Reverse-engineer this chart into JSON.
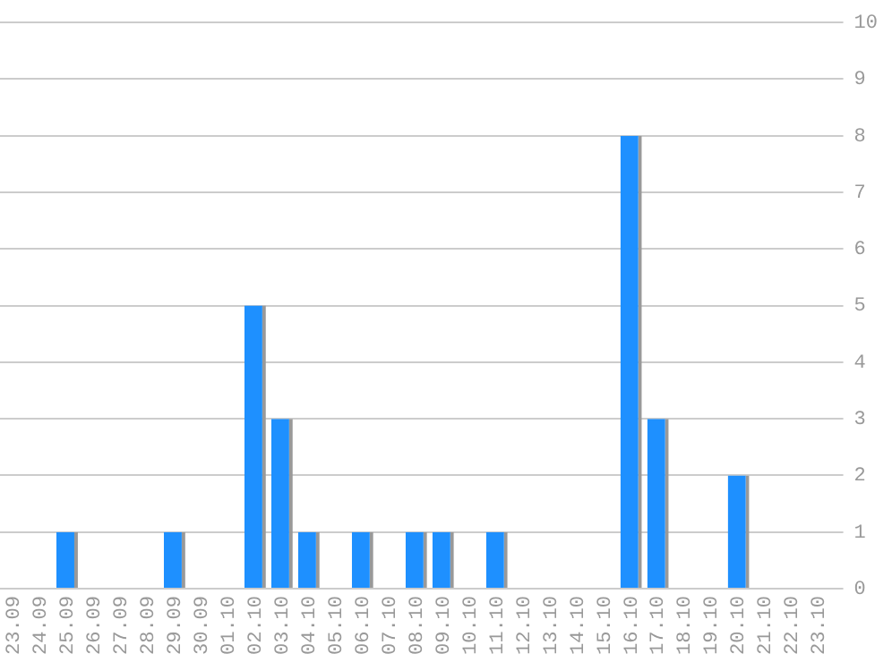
{
  "chart_data": {
    "type": "bar",
    "categories": [
      "23.09",
      "24.09",
      "25.09",
      "26.09",
      "27.09",
      "28.09",
      "29.09",
      "30.09",
      "01.10",
      "02.10",
      "03.10",
      "04.10",
      "05.10",
      "06.10",
      "07.10",
      "08.10",
      "09.10",
      "10.10",
      "11.10",
      "12.10",
      "13.10",
      "14.10",
      "15.10",
      "16.10",
      "17.10",
      "18.10",
      "19.10",
      "20.10",
      "21.10",
      "22.10",
      "23.10"
    ],
    "values": [
      0,
      0,
      1,
      0,
      0,
      0,
      1,
      0,
      0,
      5,
      3,
      1,
      0,
      1,
      0,
      1,
      1,
      0,
      1,
      0,
      0,
      0,
      0,
      8,
      3,
      0,
      0,
      2,
      0,
      0,
      0
    ],
    "color": "#1e90ff",
    "ylim": [
      0,
      10
    ],
    "yticks": [
      0,
      1,
      2,
      3,
      4,
      5,
      6,
      7,
      8,
      9,
      10
    ],
    "grid": "y",
    "legend": false
  }
}
